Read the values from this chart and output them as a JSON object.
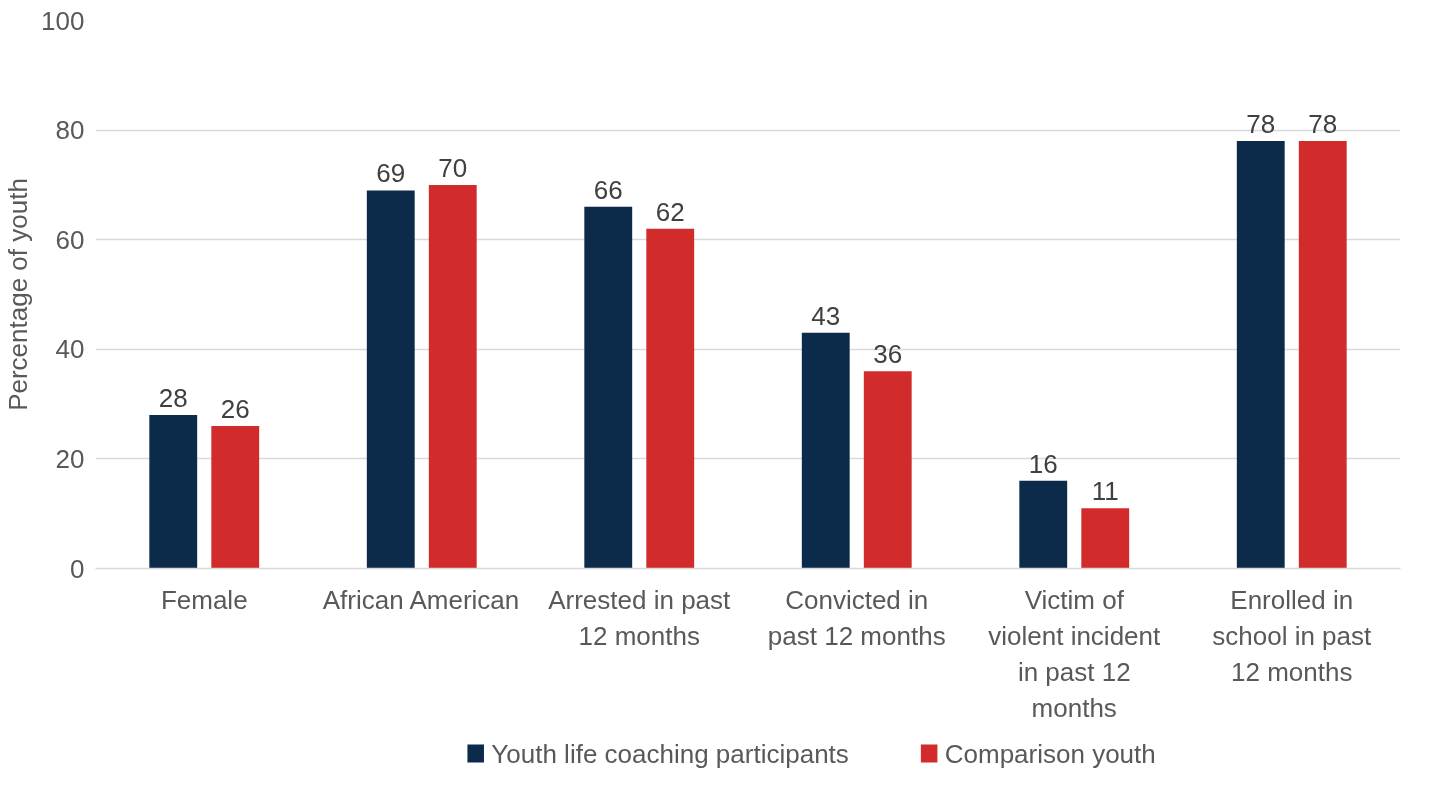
{
  "chart_data": {
    "type": "bar",
    "ylabel": "Percentage of youth",
    "categories": [
      "Female",
      "African American",
      "Arrested in past 12 months",
      "Convicted in past 12 months",
      "Victim of violent incident in past 12 months",
      "Enrolled in school in past 12 months"
    ],
    "series": [
      {
        "name": "Youth life coaching participants",
        "color": "#0c2a4a",
        "values": [
          28,
          69,
          66,
          43,
          16,
          78
        ]
      },
      {
        "name": "Comparison youth",
        "color": "#d22b2b",
        "values": [
          26,
          70,
          62,
          36,
          11,
          78
        ]
      }
    ],
    "ylim": [
      0,
      100
    ],
    "yticks": [
      0,
      20,
      40,
      60,
      80,
      100
    ],
    "grid": "y",
    "legend": "bottom",
    "data_labels": true
  }
}
